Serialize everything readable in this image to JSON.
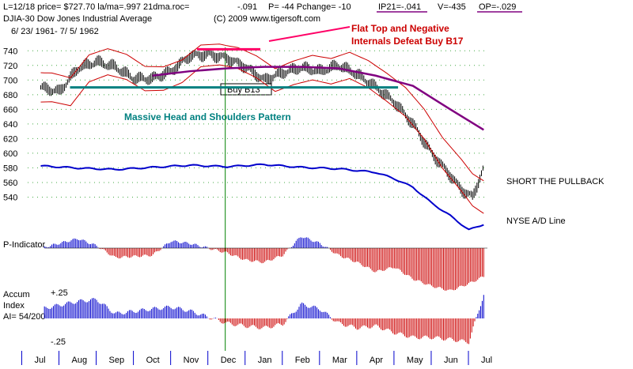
{
  "header": {
    "line1_left": "L=12/18  price= $727.70  la/ma=.997 21dma.roc=",
    "roc_value": "-.091",
    "line1_mid": "P= -44 Pchange= -10",
    "ip21_value": "IP21=-.041",
    "v_value": "V=-435",
    "op_value": "OP=-.029",
    "line2_left": "DJIA-30  Dow Jones Industrial Average",
    "copyright": "(C) 2009 www.tigersoft.com",
    "line3_left": "6/ 23/ 1961-  7/ 5/ 1962"
  },
  "annotations": {
    "flat_top_line1": "Flat Top and Negative",
    "flat_top_line2": "Internals Defeat Buy B17",
    "head_shoulders": "Massive Head and Shoulders Pattern",
    "buy_b13": "Buy B13",
    "short_pullback": "SHORT THE PULLBACK",
    "nyse_ad": "NYSE A/D Line"
  },
  "panels": {
    "p_indicator": "P-Indicator",
    "accum_line1": "Accum",
    "accum_line2": "Index",
    "accum_line3": "AI= 54/200",
    "accum_plus": "+.25",
    "accum_minus": "-.25"
  },
  "colors": {
    "price_bars": "#000000",
    "bands": "#cc0000",
    "ma200": "#800080",
    "ad_line": "#0000cc",
    "neck_line": "#008080",
    "flat_top": "#ff0066",
    "head_text": "#008080",
    "title_red": "#cc0000",
    "positive_bars": "#0000cc",
    "negative_bars": "#cc0000"
  },
  "chart_data": {
    "type": "line",
    "title": "DJIA-30 Dow Jones Industrial Average",
    "ylabel": "",
    "ylim": [
      520,
      750
    ],
    "yticks": [
      540,
      560,
      580,
      600,
      620,
      640,
      660,
      680,
      700,
      720,
      740
    ],
    "months": [
      "Jul",
      "Aug",
      "Sep",
      "Oct",
      "Nov",
      "Dec",
      "Jan",
      "Feb",
      "Mar",
      "Apr",
      "May",
      "Jun",
      "Jul"
    ],
    "price_months": [
      0,
      0.5,
      1,
      1.5,
      2,
      2.5,
      3,
      3.5,
      4,
      4.5,
      5,
      5.5,
      6,
      6.5,
      7,
      7.5,
      8,
      8.5,
      9,
      9.5,
      10,
      10.5,
      11,
      11.3,
      11.6,
      11.9
    ],
    "price_values": [
      690,
      684,
      716,
      725,
      718,
      702,
      702,
      712,
      733,
      735,
      730,
      718,
      700,
      710,
      717,
      712,
      720,
      708,
      690,
      670,
      640,
      600,
      570,
      550,
      540,
      580
    ],
    "neckline_value": 690,
    "flat_top_value": 742,
    "ma200": {
      "months": [
        3,
        4,
        5,
        6,
        7,
        8,
        9,
        10,
        11,
        11.9
      ],
      "values": [
        706,
        712,
        716,
        718,
        718,
        716,
        706,
        692,
        660,
        632
      ]
    },
    "ad_line": {
      "months": [
        0,
        1,
        2,
        3,
        4,
        5,
        6,
        7,
        8,
        9,
        9.5,
        10,
        10.5,
        11,
        11.5,
        11.9
      ],
      "relative_values": [
        0.0,
        -0.03,
        -0.05,
        -0.02,
        0.01,
        -0.01,
        0.02,
        -0.02,
        -0.04,
        -0.09,
        -0.18,
        -0.3,
        -0.52,
        -0.7,
        -0.9,
        -0.82
      ]
    },
    "p_indicator": {
      "months": [
        0,
        1,
        1.5,
        2,
        3,
        3.5,
        4,
        5,
        5.5,
        6,
        6.5,
        7,
        7.5,
        8,
        8.5,
        9,
        9.5,
        10,
        10.5,
        11,
        11.5,
        11.9
      ],
      "values": [
        0,
        0.4,
        0.1,
        -0.4,
        -0.3,
        0.3,
        0.2,
        -0.2,
        -0.5,
        -0.6,
        -0.3,
        0.5,
        0.2,
        -0.3,
        -0.6,
        -1.0,
        -0.8,
        -1.3,
        -1.6,
        -1.8,
        -1.5,
        -1.2
      ]
    },
    "accum_index": {
      "months": [
        0,
        1,
        1.5,
        2,
        3,
        3.5,
        4,
        5,
        5.5,
        6,
        6.5,
        7,
        7.5,
        8,
        8.5,
        9,
        9.5,
        10,
        10.5,
        11,
        11.5,
        11.9
      ],
      "values": [
        0.1,
        0.18,
        0.2,
        0.05,
        0.1,
        0.12,
        0.08,
        -0.05,
        -0.08,
        -0.1,
        -0.06,
        0.15,
        0.1,
        -0.05,
        -0.1,
        -0.08,
        -0.15,
        -0.2,
        -0.2,
        -0.22,
        -0.25,
        0.25
      ]
    }
  }
}
